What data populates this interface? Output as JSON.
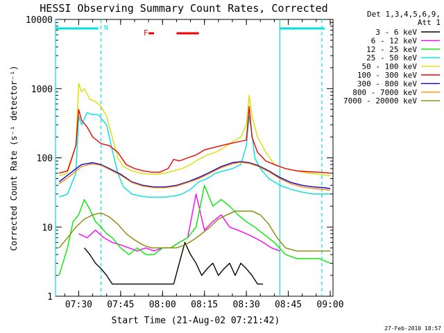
{
  "chart_data": {
    "type": "line",
    "title": "HESSI Observing Summary Count Rates, Corrected",
    "xlabel": "Start Time (21-Aug-02 07:21:42)",
    "ylabel": "Corrected Count Rate (s⁻¹ detector⁻¹)",
    "y_scale": "log",
    "ylim": [
      1,
      10000
    ],
    "xlim": [
      "07:21:42",
      "09:01:00"
    ],
    "x_ticks": [
      "07:30",
      "07:45",
      "08:00",
      "08:15",
      "08:30",
      "08:45",
      "09:00"
    ],
    "y_ticks": [
      "1",
      "10",
      "100",
      "1000",
      "10000"
    ],
    "grid": false,
    "legend_position": "right",
    "legend_header": [
      "Det 1,3,4,5,6,9,",
      "Att 1"
    ],
    "annotations": {
      "flag_letter": "F",
      "night_marker": "N",
      "timestamp": "27-Feb-2010 18:57"
    },
    "series": [
      {
        "name": "3 - 6 keV",
        "color": "#000000",
        "x": [
          "07:32",
          "07:34",
          "07:36",
          "07:38",
          "07:40",
          "07:42",
          "08:04",
          "08:06",
          "08:08",
          "08:10",
          "08:12",
          "08:14",
          "08:16",
          "08:18",
          "08:20",
          "08:22",
          "08:24",
          "08:26",
          "08:28",
          "08:30",
          "08:32",
          "08:34",
          "08:36"
        ],
        "y": [
          5,
          4,
          3,
          2.5,
          2,
          1.5,
          1.5,
          3,
          6,
          4,
          3,
          2,
          2.5,
          3,
          2,
          2.5,
          3,
          2,
          3,
          2.5,
          2,
          1.5,
          1.5
        ]
      },
      {
        "name": "6 - 12 keV",
        "color": "#ff00ff",
        "x": [
          "07:30",
          "07:33",
          "07:36",
          "07:39",
          "07:42",
          "07:45",
          "07:48",
          "07:51",
          "07:54",
          "07:57",
          "08:00",
          "08:03",
          "08:06",
          "08:09",
          "08:12",
          "08:15",
          "08:18",
          "08:21",
          "08:24",
          "08:27",
          "08:30",
          "08:33",
          "08:36",
          "08:39",
          "08:42"
        ],
        "y": [
          8,
          7,
          9,
          7,
          6,
          5.5,
          5,
          4.5,
          5,
          4.5,
          5,
          5,
          6,
          7,
          30,
          9,
          12,
          15,
          10,
          9,
          8,
          7,
          6,
          5,
          4.5
        ]
      },
      {
        "name": "12 - 25 keV",
        "color": "#00ee00",
        "x": [
          "07:23",
          "07:26",
          "07:28",
          "07:30",
          "07:32",
          "07:34",
          "07:36",
          "07:38",
          "07:40",
          "07:42",
          "07:45",
          "07:48",
          "07:51",
          "07:54",
          "07:57",
          "08:00",
          "08:03",
          "08:06",
          "08:09",
          "08:12",
          "08:15",
          "08:18",
          "08:21",
          "08:24",
          "08:27",
          "08:30",
          "08:33",
          "08:36",
          "08:40",
          "08:44",
          "08:48",
          "08:52",
          "08:56",
          "09:00"
        ],
        "y": [
          2,
          5,
          12,
          15,
          25,
          18,
          12,
          10,
          8,
          7,
          5,
          4,
          5,
          4,
          4,
          5,
          5,
          6,
          7,
          10,
          40,
          20,
          25,
          20,
          15,
          12,
          10,
          8,
          6,
          4,
          3.5,
          3.5,
          3.5,
          3
        ]
      },
      {
        "name": "25 - 50 keV",
        "color": "#00e0e0",
        "x": [
          "07:23",
          "07:26",
          "07:29",
          "07:30",
          "07:31",
          "07:33",
          "07:35",
          "07:37",
          "07:40",
          "07:42",
          "07:44",
          "07:46",
          "07:49",
          "07:52",
          "07:55",
          "07:58",
          "08:01",
          "08:04",
          "08:07",
          "08:10",
          "08:13",
          "08:16",
          "08:19",
          "08:22",
          "08:25",
          "08:28",
          "08:30",
          "08:31",
          "08:32",
          "08:33",
          "08:35",
          "08:38",
          "08:42",
          "08:46",
          "08:50",
          "08:54",
          "08:58",
          "09:00"
        ],
        "y": [
          27,
          30,
          60,
          400,
          300,
          450,
          420,
          420,
          300,
          130,
          60,
          38,
          30,
          28,
          27,
          27,
          27,
          28,
          30,
          35,
          45,
          50,
          60,
          65,
          70,
          80,
          150,
          400,
          220,
          100,
          70,
          50,
          40,
          35,
          32,
          30,
          30,
          30
        ]
      },
      {
        "name": "50 - 100 keV",
        "color": "#dddd00",
        "x": [
          "07:23",
          "07:26",
          "07:29",
          "07:30",
          "07:31",
          "07:32",
          "07:34",
          "07:36",
          "07:38",
          "07:40",
          "07:42",
          "07:44",
          "07:46",
          "07:49",
          "07:52",
          "07:55",
          "07:58",
          "08:01",
          "08:04",
          "08:07",
          "08:10",
          "08:13",
          "08:16",
          "08:19",
          "08:22",
          "08:25",
          "08:28",
          "08:30",
          "08:31",
          "08:32",
          "08:34",
          "08:37",
          "08:40",
          "08:44",
          "08:48",
          "08:52",
          "08:56",
          "09:00"
        ],
        "y": [
          55,
          60,
          150,
          1200,
          900,
          1000,
          700,
          650,
          550,
          400,
          200,
          100,
          75,
          65,
          60,
          58,
          58,
          60,
          65,
          70,
          80,
          95,
          110,
          120,
          140,
          170,
          200,
          300,
          800,
          400,
          200,
          120,
          80,
          70,
          65,
          60,
          58,
          55
        ]
      },
      {
        "name": "100 - 300 keV",
        "color": "#ee0000",
        "x": [
          "07:23",
          "07:26",
          "07:29",
          "07:30",
          "07:31",
          "07:33",
          "07:35",
          "07:38",
          "07:41",
          "07:44",
          "07:47",
          "07:50",
          "07:53",
          "07:56",
          "07:59",
          "08:02",
          "08:04",
          "08:06",
          "08:09",
          "08:12",
          "08:15",
          "08:18",
          "08:21",
          "08:24",
          "08:27",
          "08:30",
          "08:31",
          "08:32",
          "08:34",
          "08:37",
          "08:40",
          "08:44",
          "08:48",
          "08:52",
          "08:56",
          "09:00"
        ],
        "y": [
          60,
          65,
          150,
          500,
          350,
          280,
          200,
          160,
          150,
          120,
          80,
          70,
          65,
          62,
          62,
          70,
          95,
          90,
          100,
          110,
          130,
          140,
          150,
          160,
          170,
          180,
          550,
          200,
          120,
          90,
          80,
          70,
          65,
          63,
          62,
          60
        ]
      },
      {
        "name": "300 - 800 keV",
        "color": "#0000dd",
        "x": [
          "07:23",
          "07:27",
          "07:31",
          "07:35",
          "07:38",
          "07:41",
          "07:45",
          "07:49",
          "07:53",
          "07:57",
          "08:01",
          "08:05",
          "08:09",
          "08:13",
          "08:17",
          "08:21",
          "08:25",
          "08:28",
          "08:31",
          "08:34",
          "08:38",
          "08:42",
          "08:46",
          "08:50",
          "08:54",
          "08:58",
          "09:00"
        ],
        "y": [
          45,
          60,
          80,
          85,
          80,
          70,
          58,
          45,
          40,
          38,
          38,
          40,
          45,
          52,
          62,
          75,
          85,
          88,
          85,
          78,
          65,
          52,
          44,
          40,
          38,
          37,
          36
        ]
      },
      {
        "name": "800 - 7000 keV",
        "color": "#ff8800",
        "x": [
          "07:23",
          "07:27",
          "07:31",
          "07:35",
          "07:38",
          "07:41",
          "07:45",
          "07:49",
          "07:53",
          "07:57",
          "08:01",
          "08:05",
          "08:09",
          "08:13",
          "08:17",
          "08:21",
          "08:25",
          "08:28",
          "08:31",
          "08:34",
          "08:38",
          "08:42",
          "08:46",
          "08:50",
          "08:54",
          "08:58",
          "09:00"
        ],
        "y": [
          42,
          55,
          75,
          82,
          78,
          68,
          56,
          44,
          39,
          37,
          37,
          39,
          44,
          50,
          60,
          72,
          82,
          86,
          83,
          76,
          63,
          50,
          42,
          38,
          36,
          35,
          34
        ]
      },
      {
        "name": "7000 - 20000 keV",
        "color": "#888800",
        "x": [
          "07:23",
          "07:26",
          "07:29",
          "07:32",
          "07:35",
          "07:38",
          "07:41",
          "07:44",
          "07:47",
          "07:50",
          "07:53",
          "07:56",
          "07:59",
          "08:02",
          "08:05",
          "08:08",
          "08:11",
          "08:14",
          "08:17",
          "08:20",
          "08:23",
          "08:26",
          "08:29",
          "08:32",
          "08:35",
          "08:38",
          "08:41",
          "08:44",
          "08:48",
          "08:52",
          "08:56",
          "09:00"
        ],
        "y": [
          5,
          7,
          10,
          13,
          15,
          16,
          14,
          11,
          8,
          6.5,
          5.5,
          5,
          5,
          5,
          5,
          5.5,
          6.5,
          8,
          10,
          13,
          15,
          17,
          17,
          17,
          15,
          11,
          7,
          5,
          4.5,
          4.5,
          4.5,
          4.5
        ]
      }
    ],
    "vertical_lines": [
      {
        "time": "07:21:42",
        "style": "solid",
        "color": "#00e0e0"
      },
      {
        "time": "07:38:00",
        "style": "dashed",
        "color": "#00e0e0"
      },
      {
        "time": "08:42:00",
        "style": "solid",
        "color": "#00e0e0"
      },
      {
        "time": "08:57:00",
        "style": "dashed",
        "color": "#00e0e0"
      }
    ],
    "horizontal_bars": [
      {
        "from": "07:21:42",
        "to": "07:37:00",
        "color": "#00e0e0"
      },
      {
        "from": "08:42:00",
        "to": "08:58:00",
        "color": "#00e0e0"
      },
      {
        "from": "07:55:00",
        "to": "07:57:00",
        "color": "#ee0000"
      },
      {
        "from": "08:05:00",
        "to": "08:13:00",
        "color": "#ee0000"
      }
    ]
  }
}
